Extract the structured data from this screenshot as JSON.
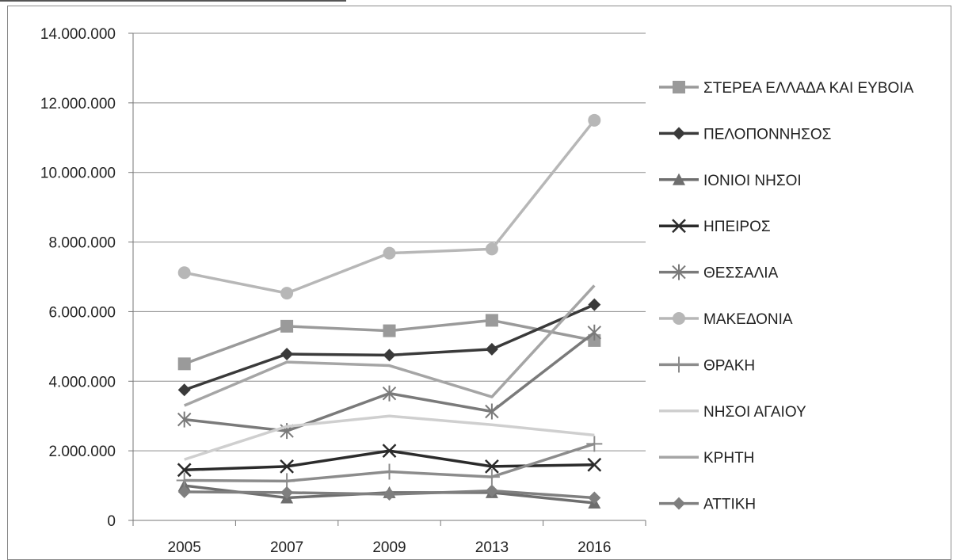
{
  "chart_data": {
    "type": "line",
    "categories": [
      "2005",
      "2007",
      "2009",
      "2013",
      "2016"
    ],
    "ylim": [
      0,
      14000000
    ],
    "yticks": [
      0,
      2000000,
      4000000,
      6000000,
      8000000,
      10000000,
      12000000,
      14000000
    ],
    "ytick_labels": [
      "0",
      "2.000.000",
      "4.000.000",
      "6.000.000",
      "8.000.000",
      "10.000.000",
      "12.000.000",
      "14.000.000"
    ],
    "grid": true,
    "legend_position": "right",
    "series": [
      {
        "name": "ΣΤΕΡΕΑ ΕΛΛΑΔΑ ΚΑΙ ΕΥΒΟΙΑ",
        "marker": "square",
        "color": "#9a9a9a",
        "values": [
          4500000,
          5580000,
          5450000,
          5750000,
          5170000
        ]
      },
      {
        "name": "ΠΕΛΟΠΟΝΝΗΣΟΣ",
        "marker": "diamond",
        "color": "#3a3a3a",
        "values": [
          3750000,
          4780000,
          4750000,
          4920000,
          6200000
        ]
      },
      {
        "name": "ΙΟΝΙΟΙ ΝΗΣΟΙ",
        "marker": "triangle",
        "color": "#6e6e6e",
        "values": [
          1000000,
          650000,
          800000,
          800000,
          500000
        ]
      },
      {
        "name": "ΗΠΕΙΡΟΣ",
        "marker": "x",
        "color": "#2b2b2b",
        "values": [
          1450000,
          1550000,
          2000000,
          1550000,
          1600000
        ]
      },
      {
        "name": "ΘΕΣΣΑΛΙΑ",
        "marker": "star",
        "color": "#7a7a7a",
        "values": [
          2900000,
          2570000,
          3650000,
          3130000,
          5400000
        ]
      },
      {
        "name": "ΜΑΚΕΔΟΝΙΑ",
        "marker": "circle",
        "color": "#b7b7b7",
        "values": [
          7120000,
          6530000,
          7680000,
          7800000,
          11500000
        ]
      },
      {
        "name": "ΘΡΑΚΗ",
        "marker": "plus",
        "color": "#8c8c8c",
        "values": [
          1150000,
          1130000,
          1400000,
          1250000,
          2200000
        ]
      },
      {
        "name": "ΝΗΣΟΙ ΑΓΑΙΟΥ",
        "marker": "none",
        "color": "#cfcfcf",
        "values": [
          1750000,
          2700000,
          3000000,
          2750000,
          2450000
        ]
      },
      {
        "name": "ΚΡΗΤΗ",
        "marker": "none",
        "color": "#a5a5a5",
        "values": [
          3300000,
          4550000,
          4450000,
          3550000,
          6750000
        ]
      },
      {
        "name": "ΑΤΤΙΚΗ",
        "marker": "diamond",
        "color": "#7f7f7f",
        "values": [
          820000,
          800000,
          750000,
          850000,
          650000
        ]
      }
    ]
  }
}
